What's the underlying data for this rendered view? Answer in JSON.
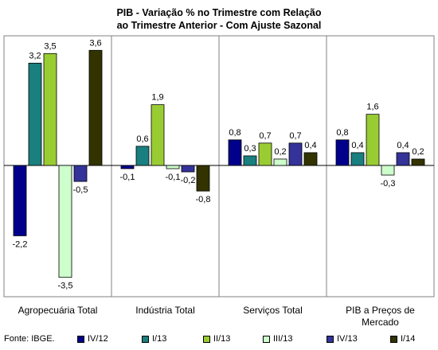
{
  "chart_data": {
    "type": "bar",
    "title_lines": [
      "PIB - Variação % no Trimestre com Relação",
      "ao Trimestre Anterior - Com Ajuste Sazonal"
    ],
    "categories": [
      [
        "Agropecuária Total"
      ],
      [
        "Indústria Total"
      ],
      [
        "Serviços Total"
      ],
      [
        "PIB a Preços de",
        "Mercado"
      ]
    ],
    "series": [
      {
        "name": "IV/12",
        "color": "#00008b",
        "values": [
          -2.2,
          -0.1,
          0.8,
          0.8
        ],
        "labels": [
          "-2,2",
          "-0,1",
          "0,8",
          "0,8"
        ]
      },
      {
        "name": "I/13",
        "color": "#1a7f7f",
        "values": [
          3.2,
          0.6,
          0.3,
          0.4
        ],
        "labels": [
          "3,2",
          "0,6",
          "0,3",
          "0,4"
        ]
      },
      {
        "name": "II/13",
        "color": "#99cc33",
        "values": [
          3.5,
          1.9,
          0.7,
          1.6
        ],
        "labels": [
          "3,5",
          "1,9",
          "0,7",
          "1,6"
        ]
      },
      {
        "name": "III/13",
        "color": "#ccffcc",
        "values": [
          -3.5,
          -0.1,
          0.2,
          -0.3
        ],
        "labels": [
          "-3,5",
          "-0,1",
          "0,2",
          "-0,3"
        ]
      },
      {
        "name": "IV/13",
        "color": "#333399",
        "values": [
          -0.5,
          -0.2,
          0.7,
          0.4
        ],
        "labels": [
          "-0,5",
          "-0,2",
          "0,7",
          "0,4"
        ]
      },
      {
        "name": "I/14",
        "color": "#333300",
        "values": [
          3.6,
          -0.8,
          0.4,
          0.2
        ],
        "labels": [
          "3,6",
          "-0,8",
          "0,4",
          "0,2"
        ]
      }
    ],
    "ylim": [
      -4.0,
      4.0
    ],
    "grid": false,
    "legend_position": "bottom",
    "source": "Fonte: IBGE."
  }
}
